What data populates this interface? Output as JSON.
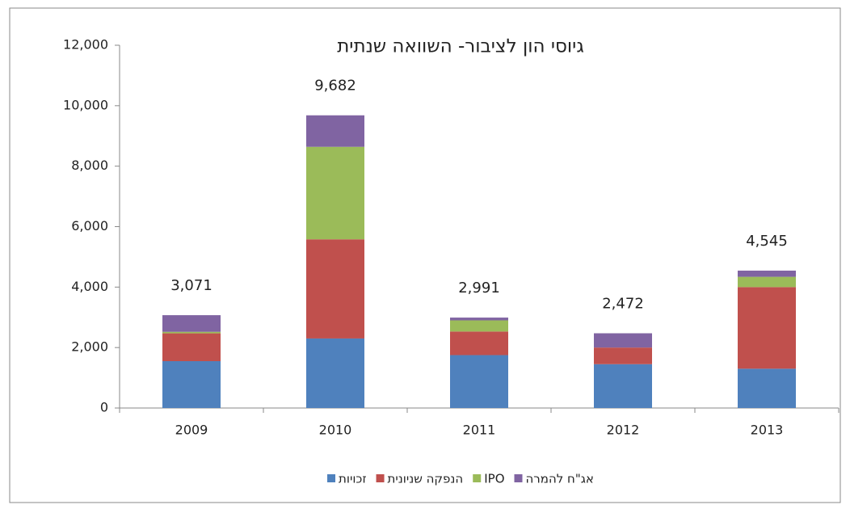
{
  "chart_data": {
    "type": "stacked_bar",
    "title": "גיוסי הון לציבור- השוואה שנתית",
    "categories": [
      "2009",
      "2010",
      "2011",
      "2012",
      "2013"
    ],
    "series": [
      {
        "name": "זכויות",
        "color": "#4f81bd",
        "values": [
          1550,
          2300,
          1750,
          1450,
          1300
        ]
      },
      {
        "name": "הנפקה שניונית",
        "color": "#c0504d",
        "values": [
          920,
          3280,
          780,
          550,
          2700
        ]
      },
      {
        "name": "IPO",
        "color": "#9bbb59",
        "values": [
          50,
          3060,
          370,
          0,
          340
        ]
      },
      {
        "name": "אג\"ח להמרה",
        "color": "#8064a2",
        "values": [
          551,
          1042,
          91,
          472,
          205
        ]
      }
    ],
    "totals": [
      3071,
      9682,
      2991,
      2472,
      4545
    ],
    "total_labels": [
      "3,071",
      "9,682",
      "2,991",
      "2,472",
      "4,545"
    ],
    "ylim": [
      0,
      12000
    ],
    "yticks": [
      0,
      {
        "value": 2000,
        "label": "2,000"
      },
      {
        "value": 4000,
        "label": "4,000"
      },
      {
        "value": 6000,
        "label": "6,000"
      },
      {
        "value": 8000,
        "label": "8,000"
      },
      {
        "value": 10000,
        "label": "10,000"
      },
      {
        "value": 12000,
        "label": "12,000"
      }
    ],
    "legend": "bottom"
  }
}
